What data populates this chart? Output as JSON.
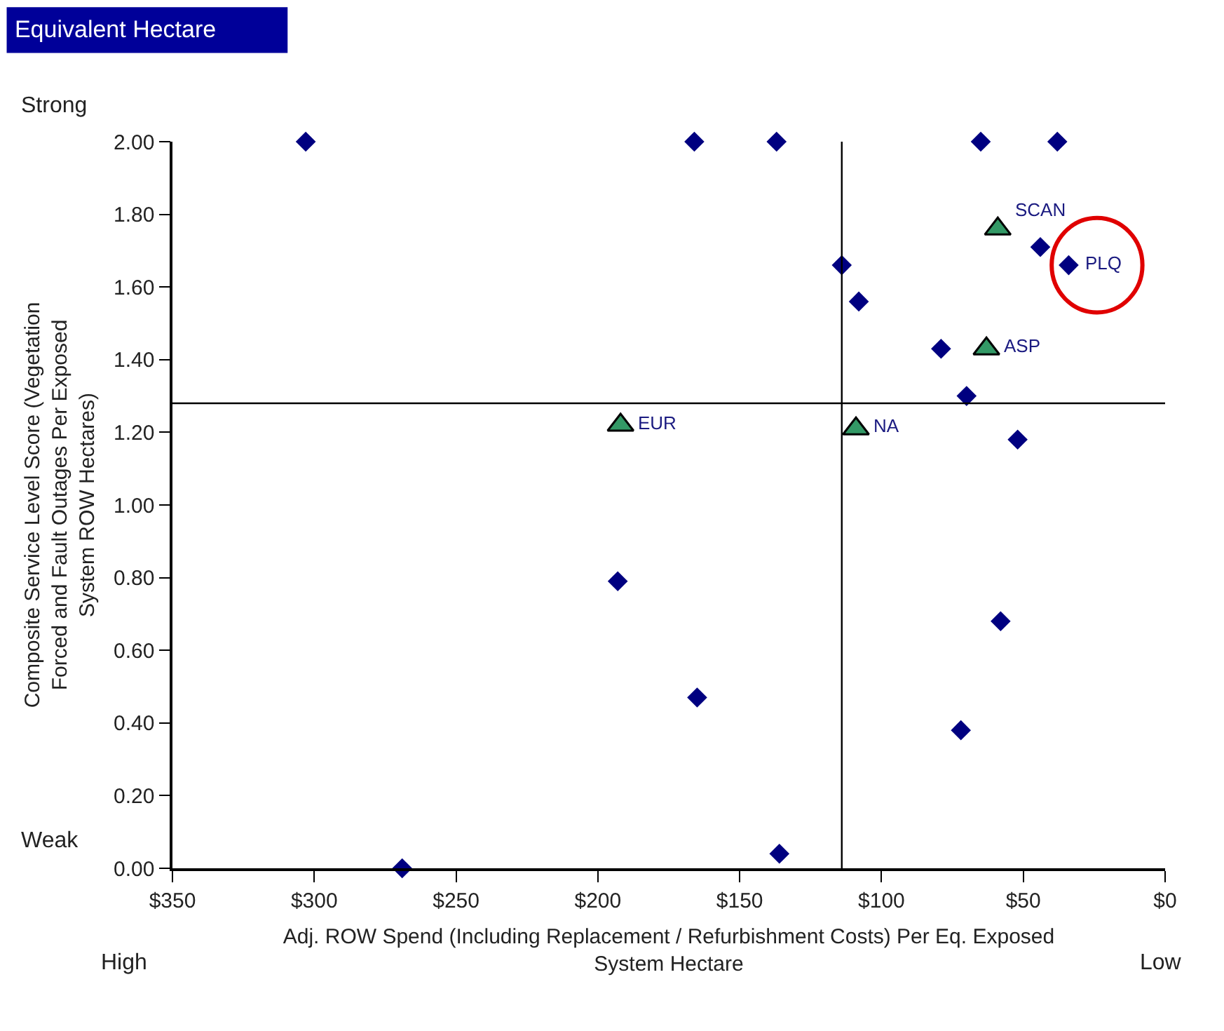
{
  "chart_data": {
    "type": "scatter",
    "title": "Equivalent Hectare",
    "xlabel": "Adj. ROW Spend (Including Replacement / Refurbishment Costs) Per Eq. Exposed System Hectare",
    "ylabel": "Composite Service Level Score (Vegetation Forced and Fault Outages Per Exposed System ROW Hectares)",
    "xlim": [
      350,
      0
    ],
    "xticks": [
      {
        "value": 350,
        "label": "$350"
      },
      {
        "value": 300,
        "label": "$300"
      },
      {
        "value": 250,
        "label": "$250"
      },
      {
        "value": 200,
        "label": "$200"
      },
      {
        "value": 150,
        "label": "$150"
      },
      {
        "value": 100,
        "label": "$100"
      },
      {
        "value": 50,
        "label": "$50"
      },
      {
        "value": 0,
        "label": "$0"
      }
    ],
    "ylim": [
      0,
      2
    ],
    "yticks": [
      {
        "value": 0,
        "label": "0.00"
      },
      {
        "value": 0.2,
        "label": "0.20"
      },
      {
        "value": 0.4,
        "label": "0.40"
      },
      {
        "value": 0.6,
        "label": "0.60"
      },
      {
        "value": 0.8,
        "label": "0.80"
      },
      {
        "value": 1,
        "label": "1.00"
      },
      {
        "value": 1.2,
        "label": "1.20"
      },
      {
        "value": 1.4,
        "label": "1.40"
      },
      {
        "value": 1.6,
        "label": "1.60"
      },
      {
        "value": 1.8,
        "label": "1.80"
      },
      {
        "value": 2,
        "label": "2.00"
      }
    ],
    "series": [
      {
        "color": "#000080",
        "marker": "diamond",
        "x": [
          303,
          166,
          137,
          65,
          38,
          44,
          34,
          114,
          108,
          79,
          70,
          52,
          193,
          165,
          58,
          72,
          136,
          269
        ],
        "values": [
          2.0,
          2.0,
          2.0,
          2.0,
          2.0,
          1.71,
          1.66,
          1.66,
          1.56,
          1.43,
          1.3,
          1.18,
          0.79,
          0.47,
          0.68,
          0.38,
          0.04,
          0.0
        ]
      },
      {
        "color": "#339966",
        "marker": "triangle",
        "x": [
          59,
          63,
          109,
          192
        ],
        "values": [
          1.76,
          1.43,
          1.21,
          1.22
        ]
      }
    ],
    "ref_lines": [
      {
        "axis": "y",
        "value": 1.28,
        "color": "#000000"
      },
      {
        "axis": "x",
        "value": 114,
        "color": "#000000"
      }
    ],
    "annotations": [
      {
        "text": "SCAN",
        "x": 59,
        "y": 1.76
      },
      {
        "text": "ASP",
        "x": 63,
        "y": 1.43
      },
      {
        "text": "NA",
        "x": 109,
        "y": 1.21
      },
      {
        "text": "EUR",
        "x": 192,
        "y": 1.22
      },
      {
        "text": "PLQ",
        "x": 34,
        "y": 1.66
      },
      "Strong",
      "Weak",
      "High",
      "Low"
    ]
  }
}
